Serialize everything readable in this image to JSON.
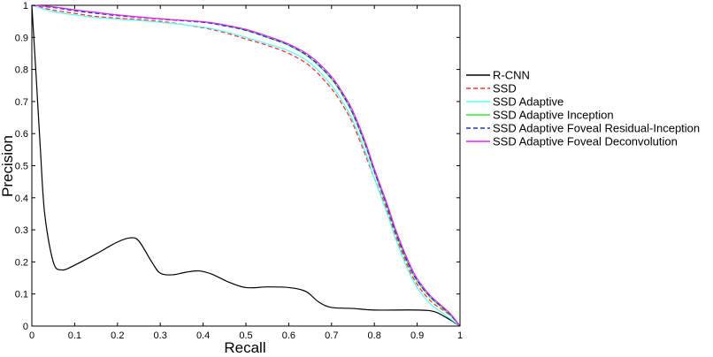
{
  "chart_data": {
    "type": "line",
    "title": "",
    "xlabel": "Recall",
    "ylabel": "Precision",
    "xlim": [
      0,
      1
    ],
    "ylim": [
      0,
      1
    ],
    "x_ticks": [
      "0",
      "0.1",
      "0.2",
      "0.3",
      "0.4",
      "0.5",
      "0.6",
      "0.7",
      "0.8",
      "0.9",
      "1"
    ],
    "y_ticks": [
      "0",
      "0.1",
      "0.2",
      "0.3",
      "0.4",
      "0.5",
      "0.6",
      "0.7",
      "0.8",
      "0.9",
      "1"
    ],
    "grid": false,
    "legend_position": "right-outside",
    "series": [
      {
        "name": "R-CNN",
        "color": "#000000",
        "dash": "solid",
        "x": [
          0,
          0.01,
          0.02,
          0.03,
          0.05,
          0.07,
          0.1,
          0.15,
          0.2,
          0.23,
          0.25,
          0.28,
          0.3,
          0.33,
          0.36,
          0.39,
          0.42,
          0.46,
          0.5,
          0.55,
          0.6,
          0.64,
          0.67,
          0.7,
          0.75,
          0.8,
          0.9,
          0.94,
          0.97,
          1.0
        ],
        "y": [
          1.0,
          0.78,
          0.55,
          0.35,
          0.2,
          0.175,
          0.19,
          0.225,
          0.262,
          0.275,
          0.265,
          0.2,
          0.165,
          0.16,
          0.168,
          0.172,
          0.162,
          0.137,
          0.12,
          0.122,
          0.12,
          0.108,
          0.075,
          0.058,
          0.055,
          0.05,
          0.05,
          0.045,
          0.025,
          0.0
        ]
      },
      {
        "name": "SSD",
        "color": "#ff3333",
        "dash": "dashed",
        "x": [
          0,
          0.05,
          0.1,
          0.15,
          0.2,
          0.3,
          0.4,
          0.45,
          0.5,
          0.55,
          0.6,
          0.65,
          0.7,
          0.73,
          0.75,
          0.78,
          0.8,
          0.83,
          0.85,
          0.88,
          0.9,
          0.93,
          0.96,
          0.98,
          1.0
        ],
        "y": [
          1.0,
          0.985,
          0.975,
          0.965,
          0.96,
          0.95,
          0.93,
          0.915,
          0.895,
          0.875,
          0.85,
          0.81,
          0.74,
          0.68,
          0.63,
          0.53,
          0.46,
          0.36,
          0.28,
          0.18,
          0.13,
          0.08,
          0.05,
          0.03,
          0.0
        ]
      },
      {
        "name": "SSD Adaptive",
        "color": "#55ffff",
        "dash": "solid",
        "x": [
          0,
          0.05,
          0.1,
          0.15,
          0.2,
          0.3,
          0.4,
          0.45,
          0.5,
          0.55,
          0.6,
          0.65,
          0.7,
          0.73,
          0.75,
          0.78,
          0.8,
          0.83,
          0.85,
          0.88,
          0.9,
          0.93,
          0.96,
          0.98,
          1.0
        ],
        "y": [
          1.0,
          0.98,
          0.97,
          0.962,
          0.957,
          0.947,
          0.932,
          0.918,
          0.9,
          0.88,
          0.858,
          0.82,
          0.75,
          0.69,
          0.64,
          0.54,
          0.46,
          0.35,
          0.27,
          0.17,
          0.12,
          0.07,
          0.04,
          0.02,
          0.0
        ]
      },
      {
        "name": "SSD Adaptive Inception",
        "color": "#33ee33",
        "dash": "solid",
        "x": [
          0,
          0.05,
          0.1,
          0.15,
          0.2,
          0.3,
          0.4,
          0.45,
          0.5,
          0.55,
          0.6,
          0.65,
          0.7,
          0.73,
          0.75,
          0.78,
          0.8,
          0.83,
          0.85,
          0.88,
          0.9,
          0.93,
          0.96,
          0.98,
          1.0
        ],
        "y": [
          1.0,
          0.995,
          0.985,
          0.978,
          0.97,
          0.958,
          0.948,
          0.937,
          0.922,
          0.9,
          0.875,
          0.835,
          0.77,
          0.71,
          0.66,
          0.56,
          0.48,
          0.37,
          0.29,
          0.19,
          0.14,
          0.09,
          0.055,
          0.03,
          0.0
        ]
      },
      {
        "name": "SSD Adaptive Foveal Residual-Inception",
        "color": "#2233cc",
        "dash": "dashed",
        "x": [
          0,
          0.05,
          0.1,
          0.15,
          0.2,
          0.3,
          0.4,
          0.45,
          0.5,
          0.55,
          0.6,
          0.65,
          0.7,
          0.73,
          0.75,
          0.78,
          0.8,
          0.83,
          0.85,
          0.88,
          0.9,
          0.93,
          0.96,
          0.98,
          1.0
        ],
        "y": [
          1.0,
          0.993,
          0.983,
          0.975,
          0.968,
          0.957,
          0.947,
          0.936,
          0.922,
          0.9,
          0.876,
          0.837,
          0.772,
          0.712,
          0.662,
          0.562,
          0.482,
          0.372,
          0.292,
          0.192,
          0.142,
          0.092,
          0.057,
          0.032,
          0.0
        ]
      },
      {
        "name": "SSD Adaptive Foveal Deconvolution",
        "color": "#ee22ee",
        "dash": "solid",
        "x": [
          0,
          0.05,
          0.1,
          0.15,
          0.2,
          0.3,
          0.4,
          0.45,
          0.5,
          0.55,
          0.6,
          0.65,
          0.7,
          0.73,
          0.75,
          0.78,
          0.8,
          0.83,
          0.85,
          0.88,
          0.9,
          0.93,
          0.96,
          0.98,
          1.0
        ],
        "y": [
          1.0,
          0.995,
          0.986,
          0.978,
          0.97,
          0.958,
          0.949,
          0.939,
          0.925,
          0.904,
          0.879,
          0.842,
          0.778,
          0.718,
          0.67,
          0.57,
          0.49,
          0.38,
          0.3,
          0.2,
          0.148,
          0.096,
          0.06,
          0.035,
          0.0
        ]
      }
    ]
  }
}
